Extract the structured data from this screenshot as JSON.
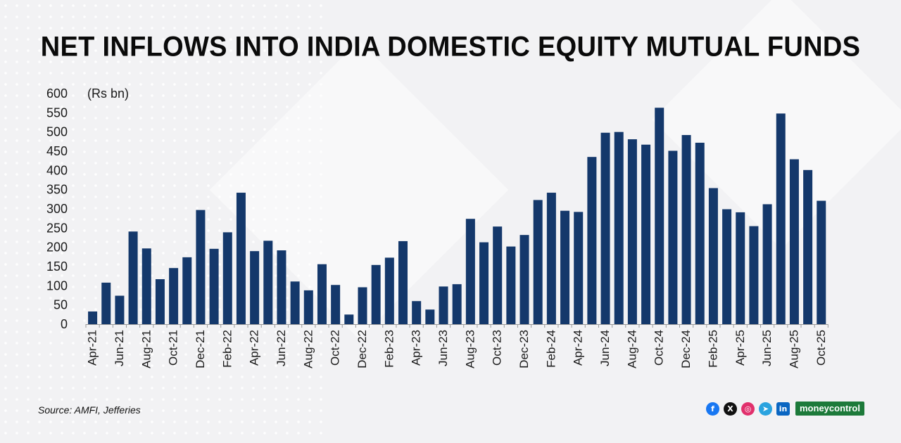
{
  "title": "NET INFLOWS INTO INDIA DOMESTIC EQUITY MUTUAL FUNDS",
  "source": "Source: AMFI, Jefferies",
  "brand": "moneycontrol",
  "social_icons": [
    "facebook-icon",
    "x-icon",
    "instagram-icon",
    "telegram-icon",
    "linkedin-icon"
  ],
  "colors": {
    "bar": "#14386b",
    "title": "#0a0a0a",
    "background": "#f2f2f4"
  },
  "chart_data": {
    "type": "bar",
    "title": "NET INFLOWS INTO INDIA DOMESTIC EQUITY MUTUAL FUNDS",
    "unit_label": "(Rs bn)",
    "xlabel": "",
    "ylabel": "",
    "ylim": [
      0,
      600
    ],
    "yticks": [
      0,
      50,
      100,
      150,
      200,
      250,
      300,
      350,
      400,
      450,
      500,
      550,
      600
    ],
    "grid": false,
    "categories": [
      "Apr-21",
      "May-21",
      "Jun-21",
      "Jul-21",
      "Aug-21",
      "Sep-21",
      "Oct-21",
      "Nov-21",
      "Dec-21",
      "Jan-22",
      "Feb-22",
      "Mar-22",
      "Apr-22",
      "May-22",
      "Jun-22",
      "Jul-22",
      "Aug-22",
      "Sep-22",
      "Oct-22",
      "Nov-22",
      "Dec-22",
      "Jan-23",
      "Feb-23",
      "Mar-23",
      "Apr-23",
      "May-23",
      "Jun-23",
      "Jul-23",
      "Aug-23",
      "Sep-23",
      "Oct-23",
      "Nov-23",
      "Dec-23",
      "Jan-24",
      "Feb-24",
      "Mar-24",
      "Apr-24",
      "May-24",
      "Jun-24",
      "Jul-24",
      "Aug-24",
      "Sep-24",
      "Oct-24",
      "Nov-24",
      "Dec-24",
      "Jan-25",
      "Feb-25",
      "Mar-25",
      "Apr-25",
      "May-25",
      "Jun-25",
      "Jul-25",
      "Aug-25",
      "Sep-25",
      "Oct-25"
    ],
    "tick_labels": [
      "Apr-21",
      "Jun-21",
      "Aug-21",
      "Oct-21",
      "Dec-21",
      "Feb-22",
      "Apr-22",
      "Jun-22",
      "Aug-22",
      "Oct-22",
      "Dec-22",
      "Feb-23",
      "Apr-23",
      "Jun-23",
      "Aug-23",
      "Oct-23",
      "Dec-23",
      "Feb-24",
      "Apr-24",
      "Jun-24",
      "Aug-24",
      "Oct-24",
      "Dec-24",
      "Feb-25",
      "Apr-25",
      "Jun-25",
      "Aug-25",
      "Oct-25"
    ],
    "values": [
      33,
      108,
      74,
      241,
      197,
      117,
      146,
      174,
      297,
      196,
      239,
      342,
      190,
      217,
      192,
      111,
      88,
      156,
      102,
      25,
      96,
      154,
      173,
      216,
      60,
      38,
      98,
      104,
      274,
      213,
      254,
      202,
      232,
      323,
      342,
      295,
      292,
      435,
      498,
      500,
      481,
      467,
      563,
      451,
      492,
      472,
      354,
      299,
      291,
      255,
      312,
      548,
      429,
      401,
      321
    ]
  }
}
